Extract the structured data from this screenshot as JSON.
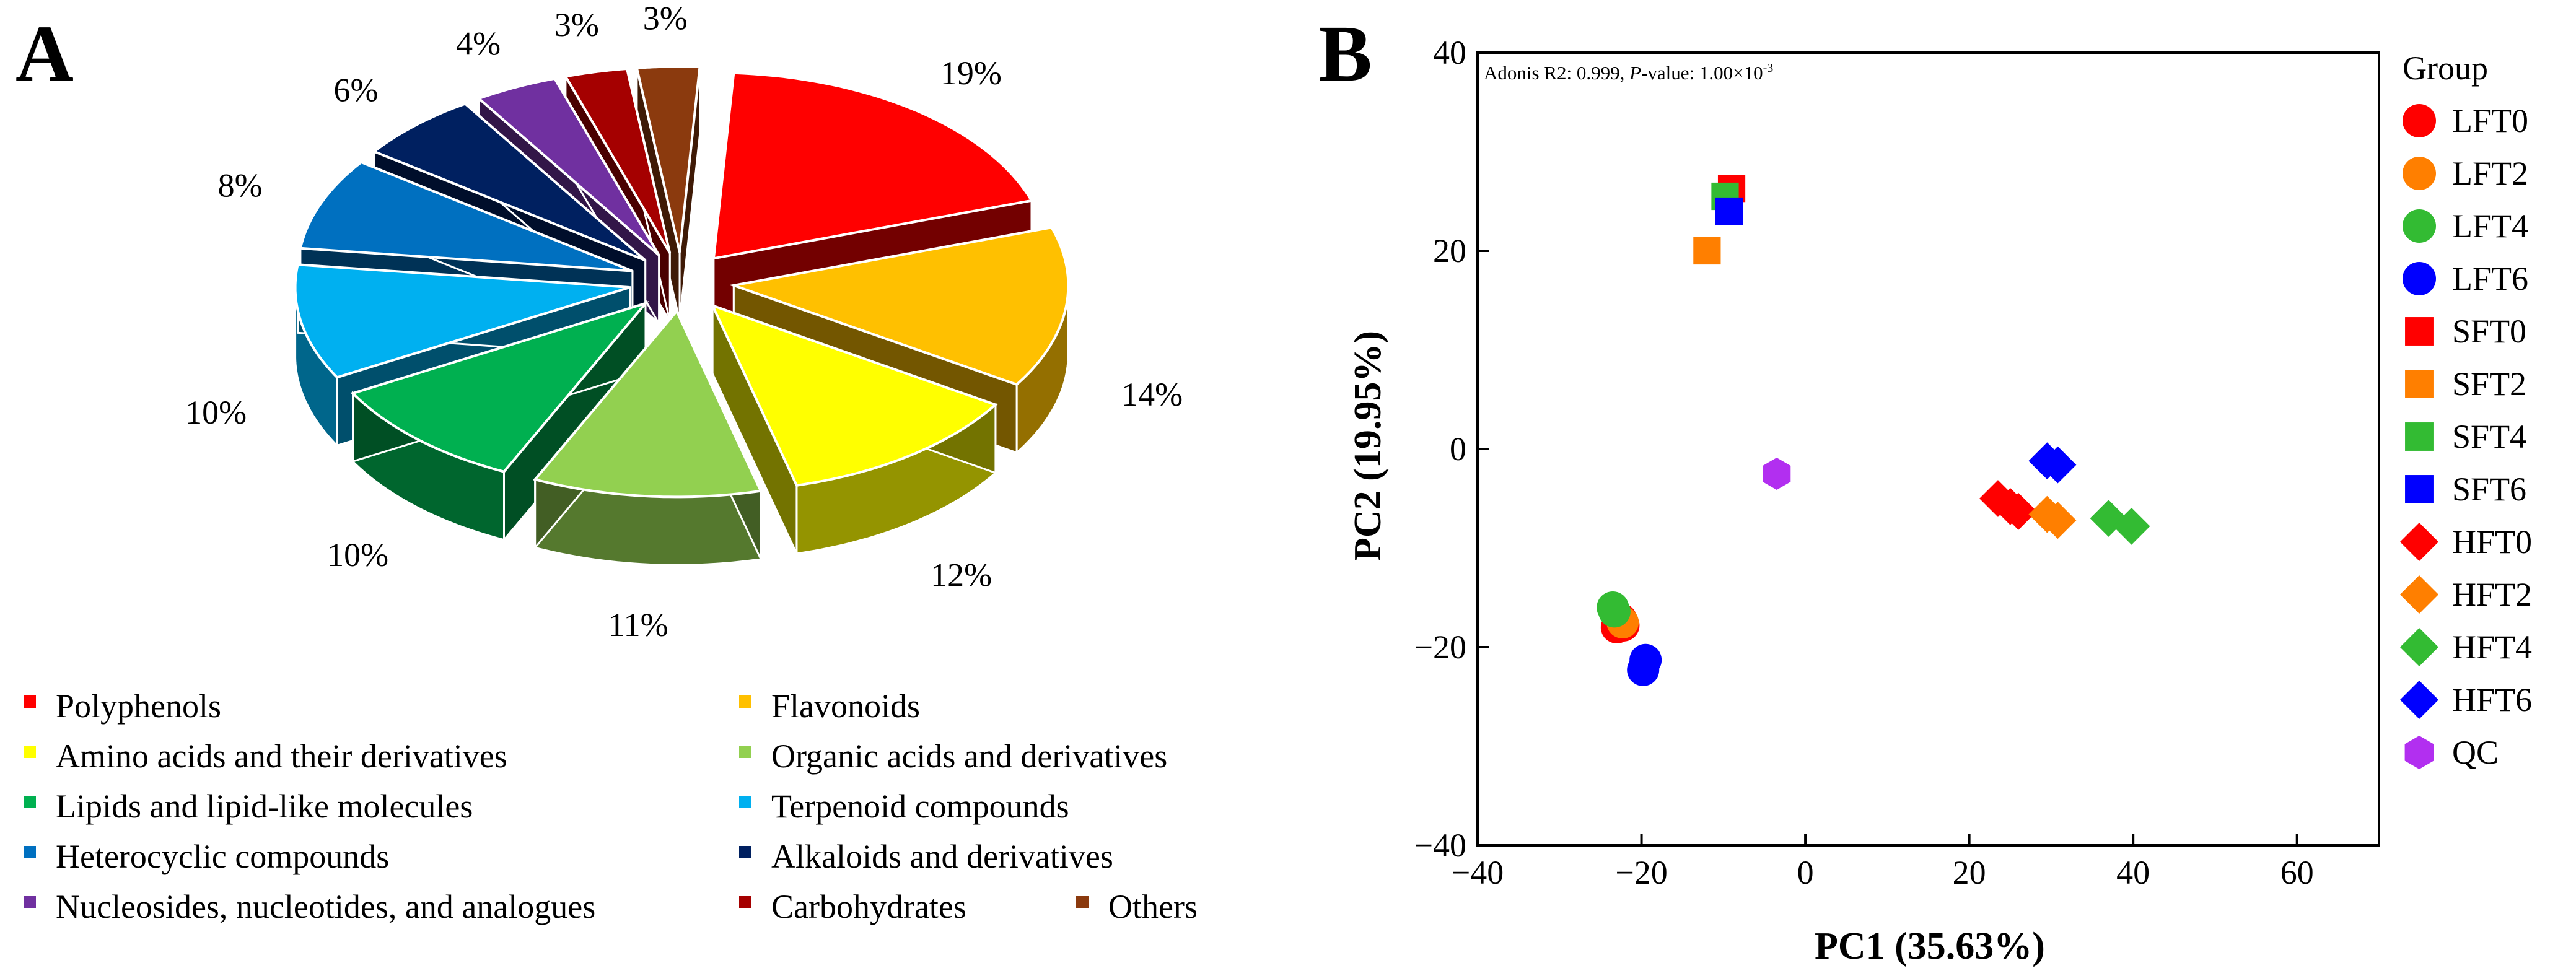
{
  "panel_a": {
    "letter": "A",
    "chart_data": {
      "type": "pie",
      "categories": [
        "Polyphenols",
        "Flavonoids",
        "Amino acids and their derivatives",
        "Organic acids and derivatives",
        "Lipids and lipid-like molecules",
        "Terpenoid compounds",
        "Heterocyclic compounds",
        "Alkaloids and derivatives",
        "Nucleosides, nucleotides, and analogues",
        "Carbohydrates",
        "Others"
      ],
      "values": [
        19,
        14,
        12,
        11,
        10,
        10,
        8,
        6,
        4,
        3,
        3
      ],
      "labels": [
        "19%",
        "14%",
        "12%",
        "11%",
        "10%",
        "10%",
        "8%",
        "6%",
        "4%",
        "3%",
        "3%"
      ],
      "legend": [
        "Polyphenols",
        "Flavonoids",
        "Amino acids and their derivatives",
        "Organic acids and derivatives",
        "Lipids and lipid-like molecules",
        "Terpenoid compounds",
        "Heterocyclic compounds",
        "Alkaloids and derivatives",
        "Nucleosides, nucleotides, and analogues",
        "Carbohydrates",
        "Others"
      ],
      "colors": [
        "#ff0000",
        "#ffc000",
        "#ffff00",
        "#92d050",
        "#00b050",
        "#00b0f0",
        "#0070c0",
        "#002060",
        "#7030a0",
        "#a50000",
        "#8b3a0e"
      ],
      "legend_placement": "bottom"
    }
  },
  "panel_b": {
    "letter": "B",
    "chart_data": {
      "type": "scatter",
      "xlabel": "PC1 (35.63%)",
      "ylabel": "PC2 (19.95%)",
      "xlim": [
        -40,
        70
      ],
      "ylim": [
        -40,
        40
      ],
      "xticks": [
        "−40",
        "−20",
        "0",
        "20",
        "40",
        "60"
      ],
      "xtick_values": [
        -40,
        -20,
        0,
        20,
        40,
        60
      ],
      "yticks": [
        "40",
        "20",
        "0",
        "−20",
        "−40"
      ],
      "ytick_values": [
        40,
        20,
        0,
        -20,
        -40
      ],
      "annotation_prefix": "Adonis R2: 0.999, ",
      "annotation_p": "P",
      "annotation_mid": "-value: 1.00×10",
      "annotation_exp": "-3",
      "legend_title": "Group",
      "legend_placement": "right",
      "series": [
        {
          "name": "LFT0",
          "color": "#ff0000",
          "marker": "circle",
          "points": [
            [
              -23,
              -18
            ],
            [
              -22.5,
              -17.2
            ],
            [
              -22.2,
              -17.8
            ]
          ]
        },
        {
          "name": "LFT2",
          "color": "#ff7f00",
          "marker": "circle",
          "points": [
            [
              -22.3,
              -17.5
            ]
          ]
        },
        {
          "name": "LFT4",
          "color": "#33bb33",
          "marker": "circle",
          "points": [
            [
              -23.5,
              -16
            ],
            [
              -23.3,
              -16.4
            ]
          ]
        },
        {
          "name": "LFT6",
          "color": "#0000ff",
          "marker": "circle",
          "points": [
            [
              -19.5,
              -21.3
            ],
            [
              -19.8,
              -22.3
            ]
          ]
        },
        {
          "name": "SFT0",
          "color": "#ff0000",
          "marker": "square",
          "points": [
            [
              -9,
              26.3
            ]
          ]
        },
        {
          "name": "SFT2",
          "color": "#ff7f00",
          "marker": "square",
          "points": [
            [
              -12,
              20
            ]
          ]
        },
        {
          "name": "SFT4",
          "color": "#33bb33",
          "marker": "square",
          "points": [
            [
              -9.8,
              25.5
            ]
          ]
        },
        {
          "name": "SFT6",
          "color": "#0000ff",
          "marker": "square",
          "points": [
            [
              -9.3,
              24
            ]
          ]
        },
        {
          "name": "HFT0",
          "color": "#ff0000",
          "marker": "diamond",
          "points": [
            [
              23.5,
              -5
            ],
            [
              25,
              -5.8
            ],
            [
              26,
              -6.3
            ]
          ]
        },
        {
          "name": "HFT2",
          "color": "#ff7f00",
          "marker": "diamond",
          "points": [
            [
              29.5,
              -6.6
            ],
            [
              30.8,
              -7.2
            ]
          ]
        },
        {
          "name": "HFT4",
          "color": "#33bb33",
          "marker": "diamond",
          "points": [
            [
              37,
              -7
            ],
            [
              39.8,
              -7.8
            ]
          ]
        },
        {
          "name": "HFT6",
          "color": "#0000ff",
          "marker": "diamond",
          "points": [
            [
              29.5,
              -1.2
            ],
            [
              30.8,
              -1.6
            ]
          ]
        },
        {
          "name": "QC",
          "color": "#b22ff0",
          "marker": "hexagon",
          "points": [
            [
              -3.5,
              -2.5
            ]
          ]
        }
      ]
    }
  }
}
